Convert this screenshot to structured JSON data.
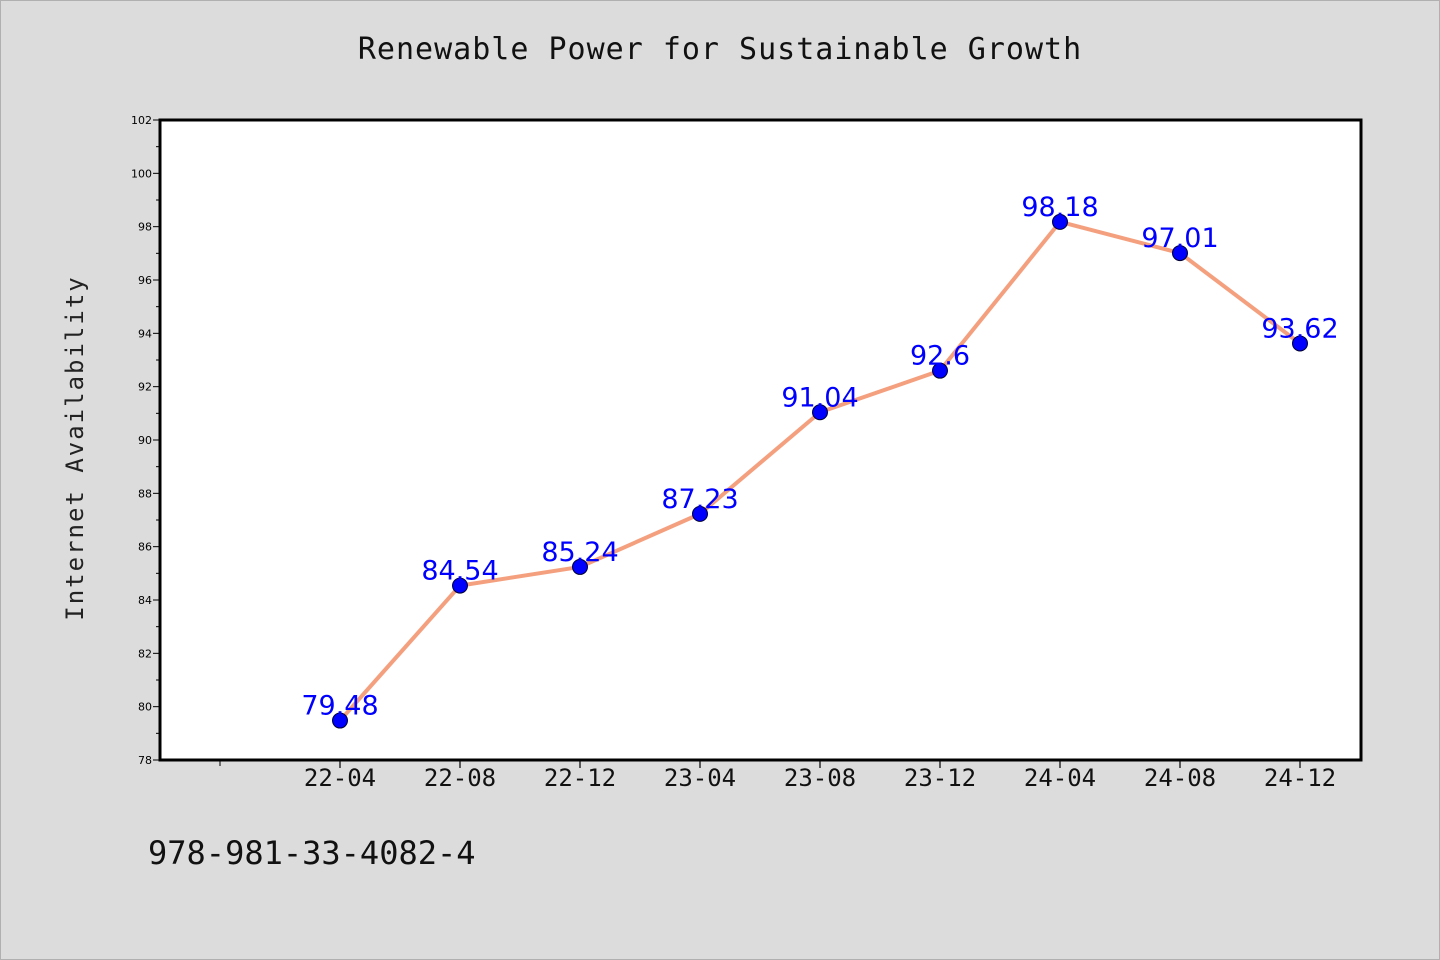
{
  "chart_data": {
    "type": "line",
    "title": "Renewable Power for Sustainable Growth",
    "xlabel": "",
    "ylabel": "Internet Availability",
    "categories": [
      "22-04",
      "22-08",
      "22-12",
      "23-04",
      "23-08",
      "23-12",
      "24-04",
      "24-08",
      "24-12"
    ],
    "series": [
      {
        "values": [
          79.48,
          84.54,
          85.24,
          87.23,
          91.04,
          92.6,
          98.18,
          97.01,
          93.62
        ]
      }
    ],
    "data_labels": [
      "79.48",
      "84.54",
      "85.24",
      "87.23",
      "91.04",
      "92.6",
      "98.18",
      "97.01",
      "93.62"
    ],
    "ylim": [
      78,
      102
    ],
    "yticks": [
      "78",
      "80",
      "82",
      "84",
      "86",
      "88",
      "90",
      "92",
      "94",
      "96",
      "98",
      "100",
      "102"
    ],
    "grid": false,
    "colors": {
      "line": "#f4a07f",
      "marker": "#0000ff",
      "label": "#0000ff",
      "axes": "#000000"
    }
  },
  "annotation": {
    "isbn": "978-981-33-4082-4"
  }
}
